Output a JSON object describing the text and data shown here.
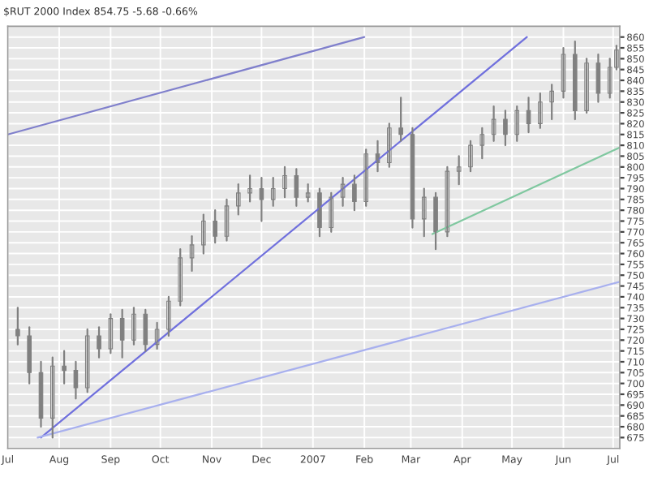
{
  "chart_data": {
    "type": "candlestick",
    "title": "$RUT 2000 Index 854.75 -5.68 -0.66%",
    "x": [
      "2006-07-07",
      "2006-07-14",
      "2006-07-21",
      "2006-07-28",
      "2006-08-04",
      "2006-08-11",
      "2006-08-18",
      "2006-08-25",
      "2006-09-01",
      "2006-09-08",
      "2006-09-15",
      "2006-09-22",
      "2006-09-29",
      "2006-10-06",
      "2006-10-13",
      "2006-10-20",
      "2006-10-27",
      "2006-11-03",
      "2006-11-10",
      "2006-11-17",
      "2006-11-24",
      "2006-12-01",
      "2006-12-08",
      "2006-12-15",
      "2006-12-22",
      "2006-12-29",
      "2007-01-05",
      "2007-01-12",
      "2007-01-19",
      "2007-01-26",
      "2007-02-02",
      "2007-02-09",
      "2007-02-16",
      "2007-02-23",
      "2007-03-02",
      "2007-03-09",
      "2007-03-16",
      "2007-03-23",
      "2007-03-30",
      "2007-04-06",
      "2007-04-13",
      "2007-04-20",
      "2007-04-27",
      "2007-05-04",
      "2007-05-11",
      "2007-05-18",
      "2007-05-25",
      "2007-06-01",
      "2007-06-08",
      "2007-06-15",
      "2007-06-22",
      "2007-06-29",
      "2007-07-03"
    ],
    "ohlc": [
      [
        725,
        735,
        718,
        722
      ],
      [
        722,
        726,
        700,
        705
      ],
      [
        705,
        710,
        680,
        684
      ],
      [
        684,
        712,
        675,
        708
      ],
      [
        708,
        715,
        700,
        706
      ],
      [
        706,
        710,
        693,
        698
      ],
      [
        698,
        725,
        696,
        722
      ],
      [
        722,
        726,
        712,
        716
      ],
      [
        716,
        732,
        714,
        730
      ],
      [
        730,
        734,
        712,
        720
      ],
      [
        720,
        735,
        718,
        732
      ],
      [
        732,
        734,
        715,
        718
      ],
      [
        718,
        728,
        716,
        725
      ],
      [
        725,
        740,
        722,
        738
      ],
      [
        738,
        762,
        736,
        758
      ],
      [
        758,
        768,
        752,
        764
      ],
      [
        764,
        778,
        760,
        775
      ],
      [
        775,
        780,
        765,
        768
      ],
      [
        768,
        785,
        766,
        782
      ],
      [
        782,
        792,
        778,
        788
      ],
      [
        788,
        796,
        784,
        790
      ],
      [
        790,
        795,
        775,
        785
      ],
      [
        785,
        795,
        782,
        790
      ],
      [
        790,
        800,
        786,
        796
      ],
      [
        796,
        799,
        782,
        786
      ],
      [
        786,
        792,
        784,
        788
      ],
      [
        788,
        790,
        768,
        772
      ],
      [
        772,
        788,
        770,
        786
      ],
      [
        786,
        795,
        782,
        792
      ],
      [
        792,
        796,
        780,
        784
      ],
      [
        784,
        808,
        782,
        806
      ],
      [
        806,
        812,
        798,
        802
      ],
      [
        802,
        820,
        800,
        818
      ],
      [
        818,
        832,
        812,
        815
      ],
      [
        815,
        818,
        772,
        776
      ],
      [
        776,
        790,
        768,
        786
      ],
      [
        786,
        788,
        762,
        770
      ],
      [
        770,
        800,
        768,
        798
      ],
      [
        798,
        805,
        792,
        800
      ],
      [
        800,
        812,
        798,
        810
      ],
      [
        810,
        818,
        804,
        815
      ],
      [
        815,
        828,
        812,
        822
      ],
      [
        822,
        826,
        810,
        815
      ],
      [
        815,
        828,
        812,
        826
      ],
      [
        826,
        832,
        816,
        820
      ],
      [
        820,
        834,
        818,
        830
      ],
      [
        830,
        838,
        822,
        835
      ],
      [
        835,
        855,
        832,
        852
      ],
      [
        852,
        858,
        822,
        826
      ],
      [
        826,
        850,
        825,
        848
      ],
      [
        848,
        852,
        830,
        834
      ],
      [
        834,
        850,
        832,
        846
      ],
      [
        846,
        856,
        845,
        854
      ]
    ],
    "color": "#808080",
    "series": [
      {
        "type": "line",
        "color": "#7070dd",
        "x": [
          "2006-07-21",
          "2007-05-10"
        ],
        "values": [
          675,
          860
        ]
      },
      {
        "type": "line",
        "color": "#8080cc",
        "x": [
          "2006-07-01",
          "2007-02-01"
        ],
        "values": [
          815,
          860
        ]
      },
      {
        "type": "line",
        "color": "#a8b0ee",
        "x": [
          "2006-07-19",
          "2007-07-05"
        ],
        "values": [
          675,
          747
        ]
      },
      {
        "type": "line",
        "color": "#80c8a0",
        "x": [
          "2007-03-14",
          "2007-07-05"
        ],
        "values": [
          769,
          809
        ]
      }
    ],
    "xlim": [
      "2006-07-01",
      "2007-07-05"
    ],
    "xticks": [
      {
        "value": "2006-07-01",
        "label": "Jul"
      },
      {
        "value": "2006-08-01",
        "label": "Aug"
      },
      {
        "value": "2006-09-01",
        "label": "Sep"
      },
      {
        "value": "2006-10-01",
        "label": "Oct"
      },
      {
        "value": "2006-11-01",
        "label": "Nov"
      },
      {
        "value": "2006-12-01",
        "label": "Dec"
      },
      {
        "value": "2007-01-01",
        "label": "2007"
      },
      {
        "value": "2007-02-01",
        "label": "Feb"
      },
      {
        "value": "2007-03-01",
        "label": "Mar"
      },
      {
        "value": "2007-04-01",
        "label": "Apr"
      },
      {
        "value": "2007-05-01",
        "label": "May"
      },
      {
        "value": "2007-06-01",
        "label": "Jun"
      },
      {
        "value": "2007-07-01",
        "label": "Jul"
      }
    ],
    "ylim": [
      670,
      865
    ],
    "yticks": [
      675,
      680,
      685,
      690,
      695,
      700,
      705,
      710,
      715,
      720,
      725,
      730,
      735,
      740,
      745,
      750,
      755,
      760,
      765,
      770,
      775,
      780,
      785,
      790,
      795,
      800,
      805,
      810,
      815,
      820,
      825,
      830,
      835,
      840,
      845,
      850,
      855,
      860
    ],
    "grid": true
  }
}
